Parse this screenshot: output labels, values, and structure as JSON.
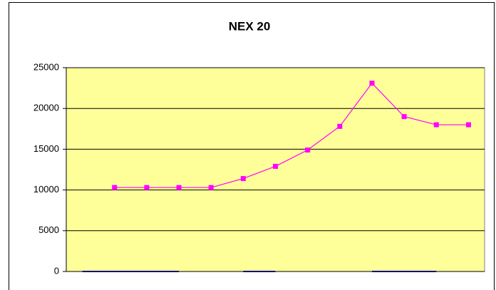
{
  "chart_data": {
    "type": "line",
    "title": "NEX 20",
    "categories": [
      null,
      null,
      null,
      null,
      null,
      null,
      null,
      null,
      null,
      null,
      null,
      null,
      null
    ],
    "series": [
      {
        "color": "#ff00ff",
        "marker": "square",
        "values": [
          null,
          10300,
          10300,
          10300,
          10300,
          11400,
          12900,
          14900,
          17800,
          23100,
          19000,
          18000,
          18000
        ]
      },
      {
        "color": "#000080",
        "values": [
          0,
          0,
          0,
          0,
          null,
          0,
          0,
          null,
          null,
          0,
          0,
          0,
          null
        ]
      }
    ],
    "ylim": [
      0,
      25000
    ],
    "yticks": [
      0,
      5000,
      10000,
      15000,
      20000,
      25000
    ],
    "grid": true
  }
}
